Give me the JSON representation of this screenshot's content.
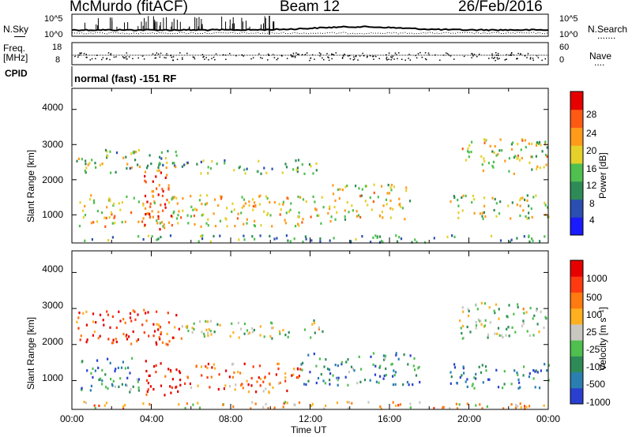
{
  "header": {
    "station": "McMurdo (fitACF)",
    "beam": "Beam 12",
    "date": "26/Feb/2016"
  },
  "top_strip": {
    "nsky_label": "N.Sky",
    "freq_label_1": "Freq.",
    "freq_label_2": "[MHz]",
    "cpid_label": "CPID",
    "nsearch_label": "N.Search",
    "nsearch_dots": ".......",
    "nave_label": "Nave",
    "nave_dots": "....",
    "noise_ticks_left": [
      "10^5",
      "10^0"
    ],
    "noise_ticks_right": [
      "10^5",
      "10^0"
    ],
    "freq_ticks": [
      "18",
      "8"
    ],
    "nave_ticks": [
      "60",
      "0"
    ],
    "cpid_text": "normal (fast) -151 RF"
  },
  "chart_data": [
    {
      "type": "heatmap",
      "title": "",
      "xlabel": "Time UT",
      "ylabel": "Slant Range [km]",
      "x_ticks": [
        "00:00",
        "04:00",
        "08:00",
        "12:00",
        "16:00",
        "20:00",
        "00:00"
      ],
      "y_ticks": [
        1000,
        2000,
        3000,
        4000
      ],
      "ylim": [
        200,
        4600
      ],
      "xlim_hours": [
        0,
        24
      ],
      "colorbar": {
        "label": "Power [dB]",
        "ticks": [
          4,
          8,
          12,
          16,
          20,
          24,
          28
        ],
        "range": [
          0,
          30
        ],
        "colors": [
          "#1a1aff",
          "#2a4fb0",
          "#2e8b57",
          "#4fbf4f",
          "#e6d12a",
          "#ff9a1a",
          "#ff5a14",
          "#e60000"
        ]
      },
      "bands": [
        {
          "t0": 0.2,
          "t1": 5.5,
          "r0": 2200,
          "r1": 2900,
          "level": 0.45
        },
        {
          "t0": 5.5,
          "t1": 12.5,
          "r0": 2200,
          "r1": 2600,
          "level": 0.4
        },
        {
          "t0": 0.3,
          "t1": 13.0,
          "r0": 700,
          "r1": 1600,
          "level": 0.6
        },
        {
          "t0": 3.5,
          "t1": 5.0,
          "r0": 600,
          "r1": 2400,
          "level": 0.85
        },
        {
          "t0": 13.0,
          "t1": 17.0,
          "r0": 900,
          "r1": 1900,
          "level": 0.55
        },
        {
          "t0": 19.0,
          "t1": 24.0,
          "r0": 900,
          "r1": 1600,
          "level": 0.5
        },
        {
          "t0": 19.5,
          "t1": 24.0,
          "r0": 2200,
          "r1": 3200,
          "level": 0.55
        },
        {
          "t0": 0.5,
          "t1": 24.0,
          "r0": 250,
          "r1": 450,
          "level": 0.35
        }
      ]
    },
    {
      "type": "heatmap",
      "title": "",
      "xlabel": "Time UT",
      "ylabel": "Slant Range [km]",
      "x_ticks": [
        "00:00",
        "04:00",
        "08:00",
        "12:00",
        "16:00",
        "20:00",
        "00:00"
      ],
      "y_ticks": [
        1000,
        2000,
        3000,
        4000
      ],
      "ylim": [
        200,
        4600
      ],
      "xlim_hours": [
        0,
        24
      ],
      "colorbar": {
        "label": "Velocity [m s⁻¹]",
        "ticks": [
          "1000",
          "500",
          "100",
          "25",
          "-25",
          "-100",
          "-500",
          "-1000"
        ],
        "colors": [
          "#2a3fd0",
          "#2a7fb0",
          "#2e8b57",
          "#4fbf4f",
          "#c8c8c0",
          "#ffb020",
          "#ff7a10",
          "#ff3a10",
          "#e60000"
        ]
      },
      "bands": [
        {
          "t0": 0.2,
          "t1": 5.5,
          "r0": 2000,
          "r1": 3000,
          "level": 0.85
        },
        {
          "t0": 5.5,
          "t1": 13.0,
          "r0": 2200,
          "r1": 2700,
          "level": 0.45
        },
        {
          "t0": 3.5,
          "t1": 5.5,
          "r0": 600,
          "r1": 1600,
          "level": 0.95
        },
        {
          "t0": 5.5,
          "t1": 11.5,
          "r0": 700,
          "r1": 1500,
          "level": 0.75
        },
        {
          "t0": 0.3,
          "t1": 3.5,
          "r0": 700,
          "r1": 1700,
          "level": 0.25
        },
        {
          "t0": 11.5,
          "t1": 17.5,
          "r0": 900,
          "r1": 1800,
          "level": 0.25
        },
        {
          "t0": 19.0,
          "t1": 24.0,
          "r0": 800,
          "r1": 1500,
          "level": 0.2
        },
        {
          "t0": 19.5,
          "t1": 24.0,
          "r0": 2200,
          "r1": 3200,
          "level": 0.45
        },
        {
          "t0": 0.5,
          "t1": 24.0,
          "r0": 250,
          "r1": 450,
          "level": 0.6
        }
      ]
    }
  ]
}
